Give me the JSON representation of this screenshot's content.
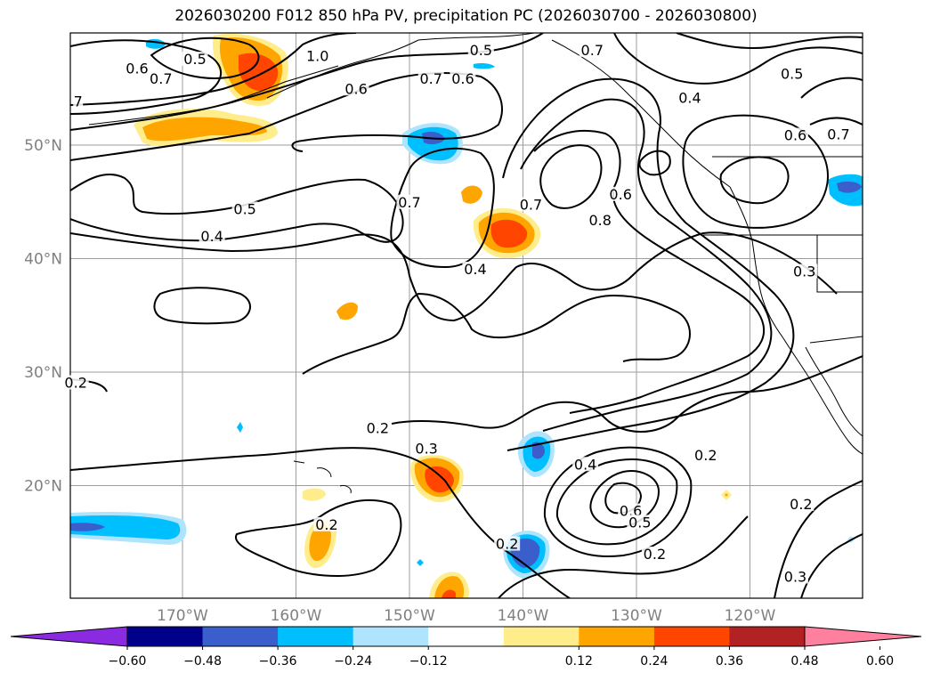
{
  "title": "2026030200 F012 850 hPa PV, precipitation PC (2026030700 - 2026030800)",
  "latitudes": [
    {
      "label": "50°N",
      "lat": 50
    },
    {
      "label": "40°N",
      "lat": 40
    },
    {
      "label": "30°N",
      "lat": 30
    },
    {
      "label": "20°N",
      "lat": 20
    }
  ],
  "longitudes": [
    {
      "label": "170°W",
      "lon": -170
    },
    {
      "label": "160°W",
      "lon": -160
    },
    {
      "label": "150°W",
      "lon": -150
    },
    {
      "label": "140°W",
      "lon": -140
    },
    {
      "label": "130°W",
      "lon": -130
    },
    {
      "label": "120°W",
      "lon": -120
    }
  ],
  "contour_labels": [
    {
      "text": "0.6",
      "lon": -174.0,
      "lat": 56.8
    },
    {
      "text": "0.5",
      "lon": -168.9,
      "lat": 57.6
    },
    {
      "text": "0.7",
      "lon": -171.9,
      "lat": 55.9
    },
    {
      "text": "7",
      "lon": -179.2,
      "lat": 53.9
    },
    {
      "text": "1.0",
      "lon": -158.1,
      "lat": 57.9
    },
    {
      "text": "0.6",
      "lon": -154.7,
      "lat": 55.0
    },
    {
      "text": "0.6",
      "lon": -145.3,
      "lat": 55.9
    },
    {
      "text": "0.5",
      "lon": -143.7,
      "lat": 58.4
    },
    {
      "text": "0.7",
      "lon": -148.1,
      "lat": 55.9
    },
    {
      "text": "0.7",
      "lon": -133.9,
      "lat": 58.4
    },
    {
      "text": "0.5",
      "lon": -116.3,
      "lat": 56.3
    },
    {
      "text": "0.4",
      "lon": -125.3,
      "lat": 54.2
    },
    {
      "text": "0.6",
      "lon": -116.0,
      "lat": 50.9
    },
    {
      "text": "0.7",
      "lon": -112.2,
      "lat": 51.0
    },
    {
      "text": "0.5",
      "lon": -164.5,
      "lat": 44.4
    },
    {
      "text": "0.4",
      "lon": -167.4,
      "lat": 42.0
    },
    {
      "text": "0.7",
      "lon": -150.0,
      "lat": 45.0
    },
    {
      "text": "0.7",
      "lon": -139.3,
      "lat": 44.8
    },
    {
      "text": "0.6",
      "lon": -131.4,
      "lat": 45.7
    },
    {
      "text": "0.8",
      "lon": -133.2,
      "lat": 43.4
    },
    {
      "text": "0.4",
      "lon": -144.2,
      "lat": 39.1
    },
    {
      "text": "0.3",
      "lon": -115.2,
      "lat": 38.9
    },
    {
      "text": "0.2",
      "lon": -179.4,
      "lat": 29.1
    },
    {
      "text": "0.2",
      "lon": -152.8,
      "lat": 25.1
    },
    {
      "text": "0.3",
      "lon": -148.5,
      "lat": 23.3
    },
    {
      "text": "0.2",
      "lon": -123.9,
      "lat": 22.7
    },
    {
      "text": "0.4",
      "lon": -134.5,
      "lat": 21.9
    },
    {
      "text": "0.6",
      "lon": -130.5,
      "lat": 17.8
    },
    {
      "text": "0.5",
      "lon": -129.7,
      "lat": 16.8
    },
    {
      "text": "0.2",
      "lon": -141.4,
      "lat": 14.9
    },
    {
      "text": "0.2",
      "lon": -157.3,
      "lat": 16.6
    },
    {
      "text": "0.2",
      "lon": -128.4,
      "lat": 14.0
    },
    {
      "text": "0.2",
      "lon": -115.5,
      "lat": 18.4
    },
    {
      "text": "0.3",
      "lon": -116.0,
      "lat": 12.0
    }
  ],
  "colorbar": {
    "colors": [
      "#8a2be2",
      "#00008b",
      "#3a5fcd",
      "#00bfff",
      "#afe4ff",
      "#ffffff",
      "#ffec8b",
      "#ffa500",
      "#ff4500",
      "#b22222",
      "#ff7f9f"
    ],
    "ticks": [
      "−0.60",
      "−0.48",
      "−0.36",
      "−0.24",
      "−0.12",
      "0.12",
      "0.24",
      "0.36",
      "0.48",
      "0.60"
    ]
  }
}
